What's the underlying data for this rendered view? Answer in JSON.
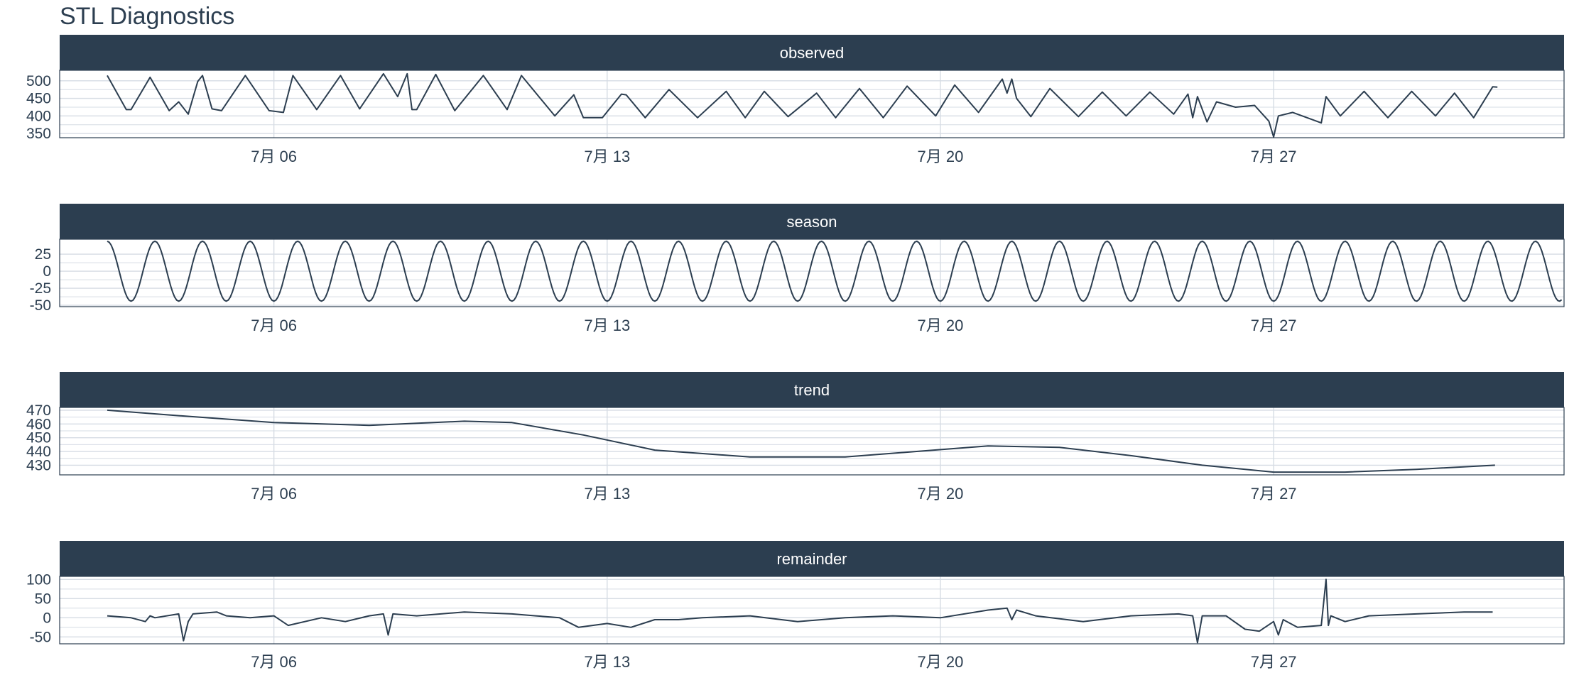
{
  "title": "STL Diagnostics",
  "colors": {
    "strip_bg": "#2c3e50",
    "strip_text": "#ffffff",
    "line": "#2c3e50",
    "grid": "#d6dce4",
    "panel_border": "#2c3e50"
  },
  "chart_data": {
    "type": "line",
    "x_unit": "day of July",
    "x_range": [
      1.5,
      33.1
    ],
    "x_ticks": [
      {
        "x": 6,
        "label": "7月 06"
      },
      {
        "x": 13,
        "label": "7月 13"
      },
      {
        "x": 20,
        "label": "7月 20"
      },
      {
        "x": 27,
        "label": "7月 27"
      }
    ],
    "grid": true,
    "panels": [
      {
        "name": "observed",
        "ylim": [
          338,
          530
        ],
        "yticks": [
          350,
          400,
          450,
          500
        ],
        "x": [
          2.5,
          2.9,
          3.0,
          3.4,
          3.8,
          4.0,
          4.2,
          4.4,
          4.5,
          4.7,
          4.9,
          5.4,
          5.9,
          6.2,
          6.4,
          6.9,
          7.4,
          7.8,
          8.3,
          8.6,
          8.8,
          8.9,
          9.0,
          9.4,
          9.8,
          10.4,
          10.9,
          11.2,
          11.9,
          12.3,
          12.5,
          12.9,
          13.3,
          13.4,
          13.8,
          14.3,
          14.9,
          15.5,
          15.9,
          16.3,
          16.8,
          17.4,
          17.8,
          18.3,
          18.8,
          19.3,
          19.9,
          20.3,
          20.8,
          21.3,
          21.4,
          21.5,
          21.6,
          21.9,
          22.3,
          22.9,
          23.4,
          23.9,
          24.4,
          24.9,
          25.2,
          25.3,
          25.4,
          25.6,
          25.8,
          26.2,
          26.6,
          26.9,
          27.0,
          27.1,
          27.4,
          27.9,
          28.0,
          28.1,
          28.4,
          28.9,
          29.4,
          29.9,
          30.4,
          30.8,
          31.2,
          31.6,
          31.7
        ],
        "values": [
          515,
          418,
          418,
          510,
          415,
          440,
          405,
          498,
          515,
          420,
          415,
          515,
          415,
          410,
          515,
          418,
          515,
          420,
          520,
          455,
          520,
          418,
          418,
          518,
          415,
          515,
          418,
          515,
          400,
          460,
          395,
          395,
          462,
          460,
          395,
          475,
          395,
          470,
          395,
          470,
          398,
          465,
          395,
          478,
          395,
          485,
          400,
          488,
          410,
          505,
          465,
          505,
          450,
          398,
          478,
          398,
          468,
          400,
          468,
          405,
          462,
          395,
          455,
          383,
          440,
          425,
          430,
          385,
          340,
          400,
          410,
          385,
          380,
          455,
          400,
          470,
          395,
          470,
          400,
          465,
          395,
          483,
          482
        ]
      },
      {
        "name": "season",
        "ylim": [
          -52,
          47
        ],
        "yticks": [
          -50,
          -25,
          0,
          25
        ],
        "period_days": 1,
        "x_start": 2.5,
        "x_end": 33.05,
        "amplitude": 44
      },
      {
        "name": "trend",
        "ylim": [
          423,
          472
        ],
        "yticks": [
          430,
          440,
          450,
          460,
          470
        ],
        "x": [
          2.5,
          4.0,
          6.0,
          8.0,
          10.0,
          11.0,
          12.5,
          14.0,
          16.0,
          18.0,
          19.5,
          21.0,
          22.5,
          24.0,
          25.5,
          27.0,
          28.5,
          30.0,
          31.65
        ],
        "values": [
          470,
          466,
          461,
          459,
          462,
          461,
          452,
          441,
          436,
          436,
          440,
          444,
          443,
          437,
          430,
          425,
          425,
          427,
          430
        ]
      },
      {
        "name": "remainder",
        "ylim": [
          -68,
          108
        ],
        "yticks": [
          -50,
          0,
          50,
          100
        ],
        "x": [
          2.5,
          3.0,
          3.3,
          3.4,
          3.5,
          4.0,
          4.1,
          4.2,
          4.3,
          4.8,
          5.0,
          5.5,
          6.0,
          6.3,
          7.0,
          7.5,
          8.0,
          8.3,
          8.4,
          8.5,
          9.0,
          10.0,
          11.0,
          11.5,
          12.0,
          12.4,
          13.0,
          13.5,
          14.0,
          14.5,
          15.0,
          16.0,
          17.0,
          18.0,
          19.0,
          20.0,
          21.0,
          21.4,
          21.5,
          21.6,
          22.0,
          23.0,
          24.0,
          25.0,
          25.3,
          25.4,
          25.5,
          26.0,
          26.4,
          26.7,
          27.0,
          27.1,
          27.2,
          27.5,
          28.0,
          28.1,
          28.15,
          28.2,
          28.5,
          29.0,
          30.0,
          31.0,
          31.6
        ],
        "values": [
          5,
          0,
          -10,
          5,
          0,
          10,
          -60,
          -10,
          10,
          15,
          5,
          0,
          5,
          -20,
          0,
          -10,
          5,
          10,
          -45,
          10,
          5,
          15,
          10,
          5,
          0,
          -25,
          -15,
          -25,
          -5,
          -5,
          0,
          5,
          -10,
          0,
          5,
          0,
          20,
          25,
          -5,
          20,
          5,
          -10,
          5,
          10,
          5,
          -65,
          5,
          5,
          -30,
          -35,
          -10,
          -45,
          -5,
          -25,
          -20,
          100,
          -20,
          5,
          -10,
          5,
          10,
          15,
          15
        ]
      }
    ]
  }
}
